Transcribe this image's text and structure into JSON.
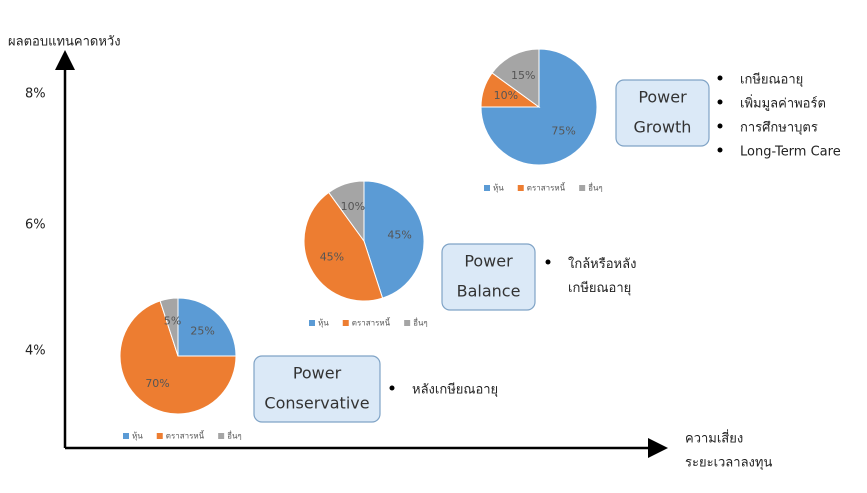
{
  "y_axis_label": "ผลตอบแทนคาดหวัง",
  "x_axis_label": [
    "ความเสี่ยง",
    "ระยะเวลาลงทุน"
  ],
  "y_labels": [
    "8%",
    "6%",
    "4%"
  ],
  "legend": [
    "หุ้น",
    "ตราสารหนี้",
    "อื่นๆ"
  ],
  "colors": [
    "#5b9bd5",
    "#ed7d31",
    "#a5a5a5"
  ],
  "portfolios": [
    {
      "name": [
        "Power",
        "Conservative"
      ],
      "values": [
        25,
        70,
        5
      ],
      "value_labels": [
        "25%",
        "70%",
        "5%"
      ],
      "notes": [
        "หลังเกษียณอายุ"
      ]
    },
    {
      "name": [
        "Power",
        "Balance"
      ],
      "values": [
        45,
        45,
        10
      ],
      "value_labels": [
        "45%",
        "45%",
        "10%"
      ],
      "notes": [
        "ใกล้หรือหลัง\nเกษียณอายุ"
      ]
    },
    {
      "name": [
        "Power",
        "Growth"
      ],
      "values": [
        75,
        10,
        15
      ],
      "value_labels": [
        "75%",
        "10%",
        "15%"
      ],
      "notes": [
        "เกษียณอายุ",
        "เพิ่มมูลค่าพอร์ต",
        "การศึกษาบุตร",
        "Long-Term Care"
      ]
    }
  ]
}
